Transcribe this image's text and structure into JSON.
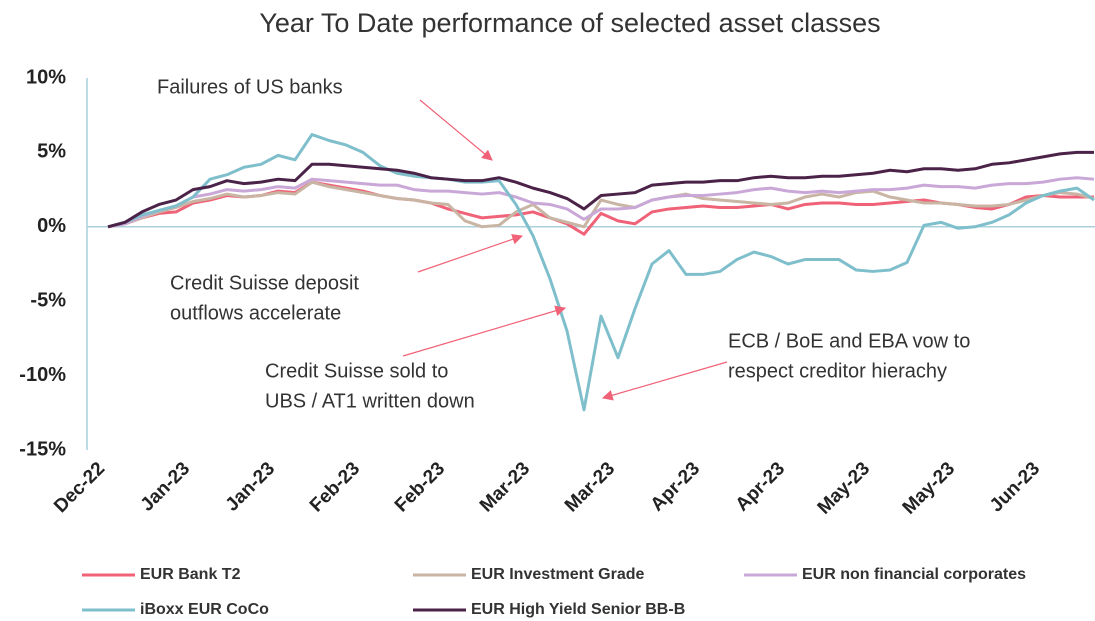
{
  "chart_data": {
    "type": "line",
    "title": "Year To Date performance of selected asset classes",
    "categories": [
      "Dec-22",
      null,
      null,
      null,
      null,
      "Jan-23",
      null,
      null,
      null,
      null,
      "Jan-23",
      null,
      null,
      null,
      null,
      "Feb-23",
      null,
      null,
      null,
      null,
      "Feb-23",
      null,
      null,
      null,
      null,
      "Mar-23",
      null,
      null,
      null,
      null,
      "Mar-23",
      null,
      null,
      null,
      null,
      "Apr-23",
      null,
      null,
      null,
      null,
      "Apr-23",
      null,
      null,
      null,
      null,
      "May-23",
      null,
      null,
      null,
      null,
      "May-23",
      null,
      null,
      null,
      null,
      "Jun-23",
      null,
      null,
      null
    ],
    "ylim": [
      -15,
      10
    ],
    "yticks": [
      {
        "value": -15,
        "label": "-15%"
      },
      {
        "value": -10,
        "label": "-10%"
      },
      {
        "value": -5,
        "label": "-5%"
      },
      {
        "value": 0,
        "label": "0%"
      },
      {
        "value": 5,
        "label": "5%"
      },
      {
        "value": 10,
        "label": "10%"
      }
    ],
    "series": [
      {
        "name": "EUR Bank T2",
        "color": "#f06277",
        "values": [
          0,
          0.2,
          0.6,
          0.9,
          1.0,
          1.6,
          1.8,
          2.1,
          2.0,
          2.1,
          2.4,
          2.3,
          3.0,
          2.8,
          2.6,
          2.4,
          2.1,
          1.9,
          1.8,
          1.6,
          1.2,
          0.9,
          0.6,
          0.7,
          0.8,
          1.0,
          0.6,
          0.2,
          -0.5,
          0.9,
          0.4,
          0.2,
          1.0,
          1.2,
          1.3,
          1.4,
          1.3,
          1.3,
          1.4,
          1.5,
          1.2,
          1.5,
          1.6,
          1.6,
          1.5,
          1.5,
          1.6,
          1.7,
          1.8,
          1.6,
          1.5,
          1.3,
          1.2,
          1.5,
          2.0,
          2.1,
          2.0,
          2.0,
          2.0
        ]
      },
      {
        "name": "EUR Investment Grade",
        "color": "#c9b5a4",
        "values": [
          0,
          0.2,
          0.6,
          1.0,
          1.3,
          1.7,
          1.9,
          2.2,
          2.0,
          2.1,
          2.3,
          2.2,
          3.0,
          2.7,
          2.5,
          2.3,
          2.1,
          1.9,
          1.8,
          1.6,
          1.5,
          0.4,
          0.0,
          0.1,
          1.0,
          1.5,
          0.6,
          0.3,
          0.0,
          1.8,
          1.5,
          1.3,
          1.8,
          2.0,
          2.2,
          1.9,
          1.8,
          1.7,
          1.6,
          1.5,
          1.6,
          2.0,
          2.2,
          2.0,
          2.3,
          2.4,
          2.0,
          1.8,
          1.6,
          1.6,
          1.5,
          1.4,
          1.4,
          1.5,
          1.8,
          2.1,
          2.3,
          2.2,
          1.9
        ]
      },
      {
        "name": "EUR non financial corporates",
        "color": "#c9a8d8",
        "values": [
          0,
          0.2,
          0.7,
          1.1,
          1.4,
          2.0,
          2.2,
          2.5,
          2.4,
          2.5,
          2.7,
          2.6,
          3.2,
          3.1,
          3.0,
          2.9,
          2.8,
          2.8,
          2.5,
          2.4,
          2.4,
          2.3,
          2.2,
          2.3,
          2.0,
          1.6,
          1.5,
          1.2,
          0.5,
          1.2,
          1.2,
          1.3,
          1.8,
          2.0,
          2.1,
          2.1,
          2.2,
          2.3,
          2.5,
          2.6,
          2.4,
          2.3,
          2.4,
          2.3,
          2.4,
          2.5,
          2.5,
          2.6,
          2.8,
          2.7,
          2.7,
          2.6,
          2.8,
          2.9,
          2.9,
          3.0,
          3.2,
          3.3,
          3.2
        ]
      },
      {
        "name": "iBoxx EUR CoCo",
        "color": "#7fbfcc",
        "values": [
          0,
          0.3,
          0.8,
          1.1,
          1.4,
          2.0,
          3.2,
          3.5,
          4.0,
          4.2,
          4.8,
          4.5,
          6.2,
          5.8,
          5.5,
          5.0,
          4.1,
          3.6,
          3.4,
          3.3,
          3.2,
          3.0,
          3.0,
          3.1,
          1.5,
          -0.6,
          -3.5,
          -7.0,
          -12.3,
          -6.0,
          -8.8,
          -5.5,
          -2.5,
          -1.6,
          -3.2,
          -3.2,
          -3.0,
          -2.2,
          -1.7,
          -2.0,
          -2.5,
          -2.2,
          -2.2,
          -2.2,
          -2.9,
          -3.0,
          -2.9,
          -2.4,
          0.1,
          0.3,
          -0.1,
          0.0,
          0.3,
          0.8,
          1.6,
          2.1,
          2.4,
          2.6,
          1.8
        ]
      },
      {
        "name": "EUR High Yield Senior BB-B",
        "color": "#4b2248",
        "values": [
          0,
          0.3,
          1.0,
          1.5,
          1.8,
          2.5,
          2.7,
          3.1,
          2.9,
          3.0,
          3.2,
          3.1,
          4.2,
          4.2,
          4.1,
          4.0,
          3.9,
          3.8,
          3.6,
          3.3,
          3.2,
          3.1,
          3.1,
          3.3,
          3.0,
          2.6,
          2.3,
          1.9,
          1.2,
          2.1,
          2.2,
          2.3,
          2.8,
          2.9,
          3.0,
          3.0,
          3.1,
          3.1,
          3.3,
          3.4,
          3.3,
          3.3,
          3.4,
          3.4,
          3.5,
          3.6,
          3.8,
          3.7,
          3.9,
          3.9,
          3.8,
          3.9,
          4.2,
          4.3,
          4.5,
          4.7,
          4.9,
          5.0,
          5.0
        ]
      }
    ],
    "annotations": [
      {
        "lines": [
          "Failures of US banks"
        ]
      },
      {
        "lines": [
          "Credit Suisse deposit",
          "outflows accelerate"
        ]
      },
      {
        "lines": [
          "Credit Suisse sold to",
          "UBS / AT1 written down"
        ]
      },
      {
        "lines": [
          "ECB / BoE and EBA vow to",
          "respect creditor hierachy"
        ]
      }
    ]
  }
}
